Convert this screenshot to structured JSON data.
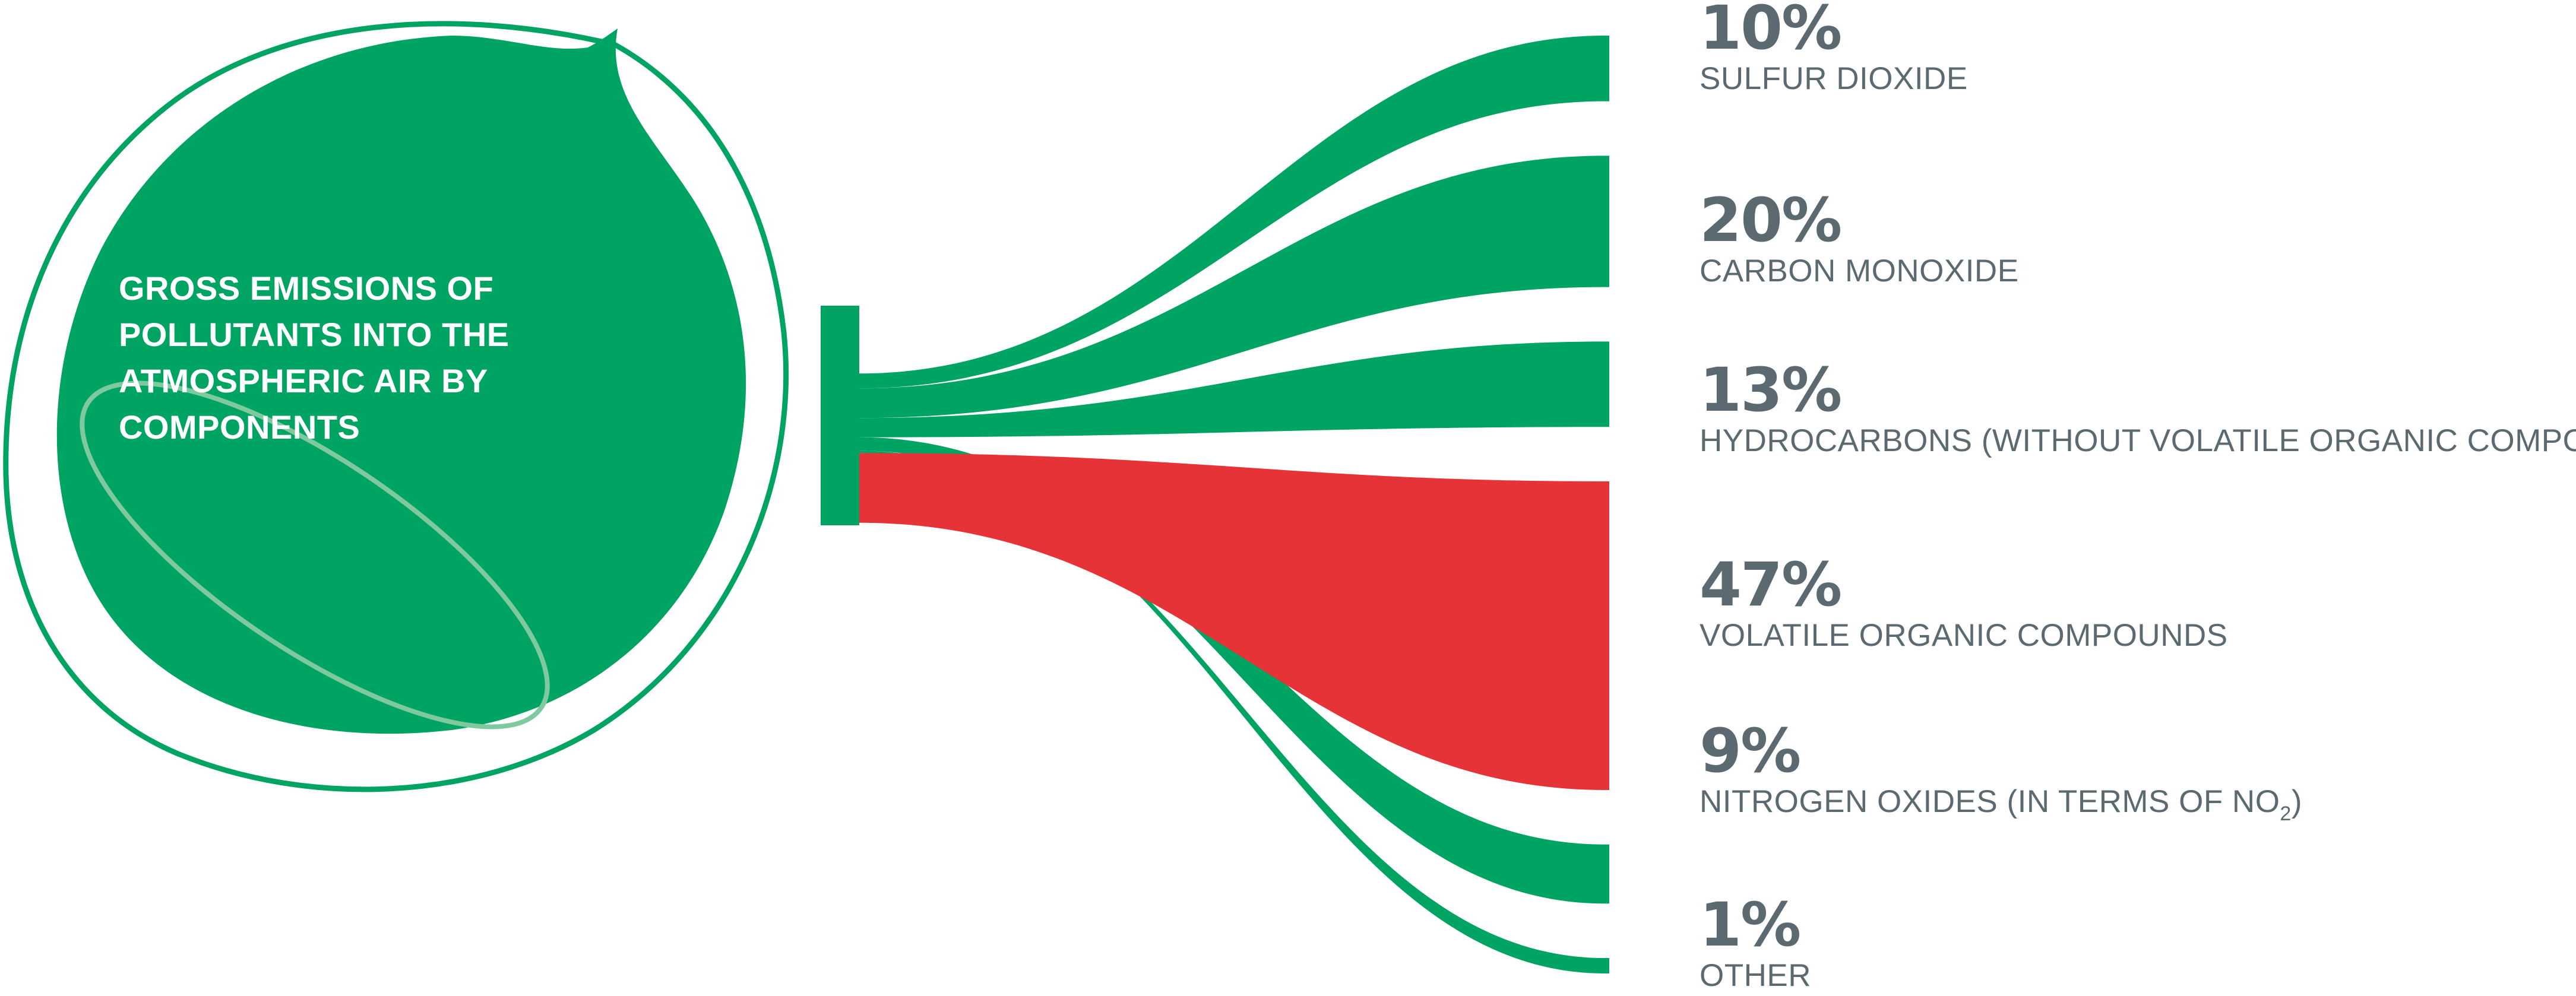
{
  "colors": {
    "green": "#00A462",
    "red": "#E63338",
    "label_gray": "#5A6A70",
    "title_white": "#FFFFFF",
    "ellipse_light": "#7FC99E"
  },
  "title_lines": [
    "GROSS EMISSIONS OF",
    "POLLUTANTS INTO THE",
    "ATMOSPHERIC AIR BY",
    "COMPONENTS"
  ],
  "chart_data": {
    "type": "sankey",
    "title": "GROSS EMISSIONS OF POLLUTANTS INTO THE ATMOSPHERIC AIR BY COMPONENTS",
    "unit": "%",
    "highlight_index": 3,
    "categories": [
      "SULFUR DIOXIDE",
      "CARBON MONOXIDE",
      "HYDROCARBONS (WITHOUT VOLATILE ORGANIC COMPOUNDS)",
      "VOLATILE ORGANIC COMPOUNDS",
      "NITROGEN OXIDES (IN TERMS OF NO",
      "OTHER"
    ],
    "values": [
      10,
      20,
      13,
      47,
      9,
      1
    ],
    "value_labels": [
      "10%",
      "20%",
      "13%",
      "47%",
      "9%",
      "1%"
    ],
    "subscripts": [
      "",
      "",
      "",
      "",
      "2",
      ""
    ],
    "suffixes": [
      "",
      "",
      "",
      "",
      ")",
      ""
    ]
  }
}
